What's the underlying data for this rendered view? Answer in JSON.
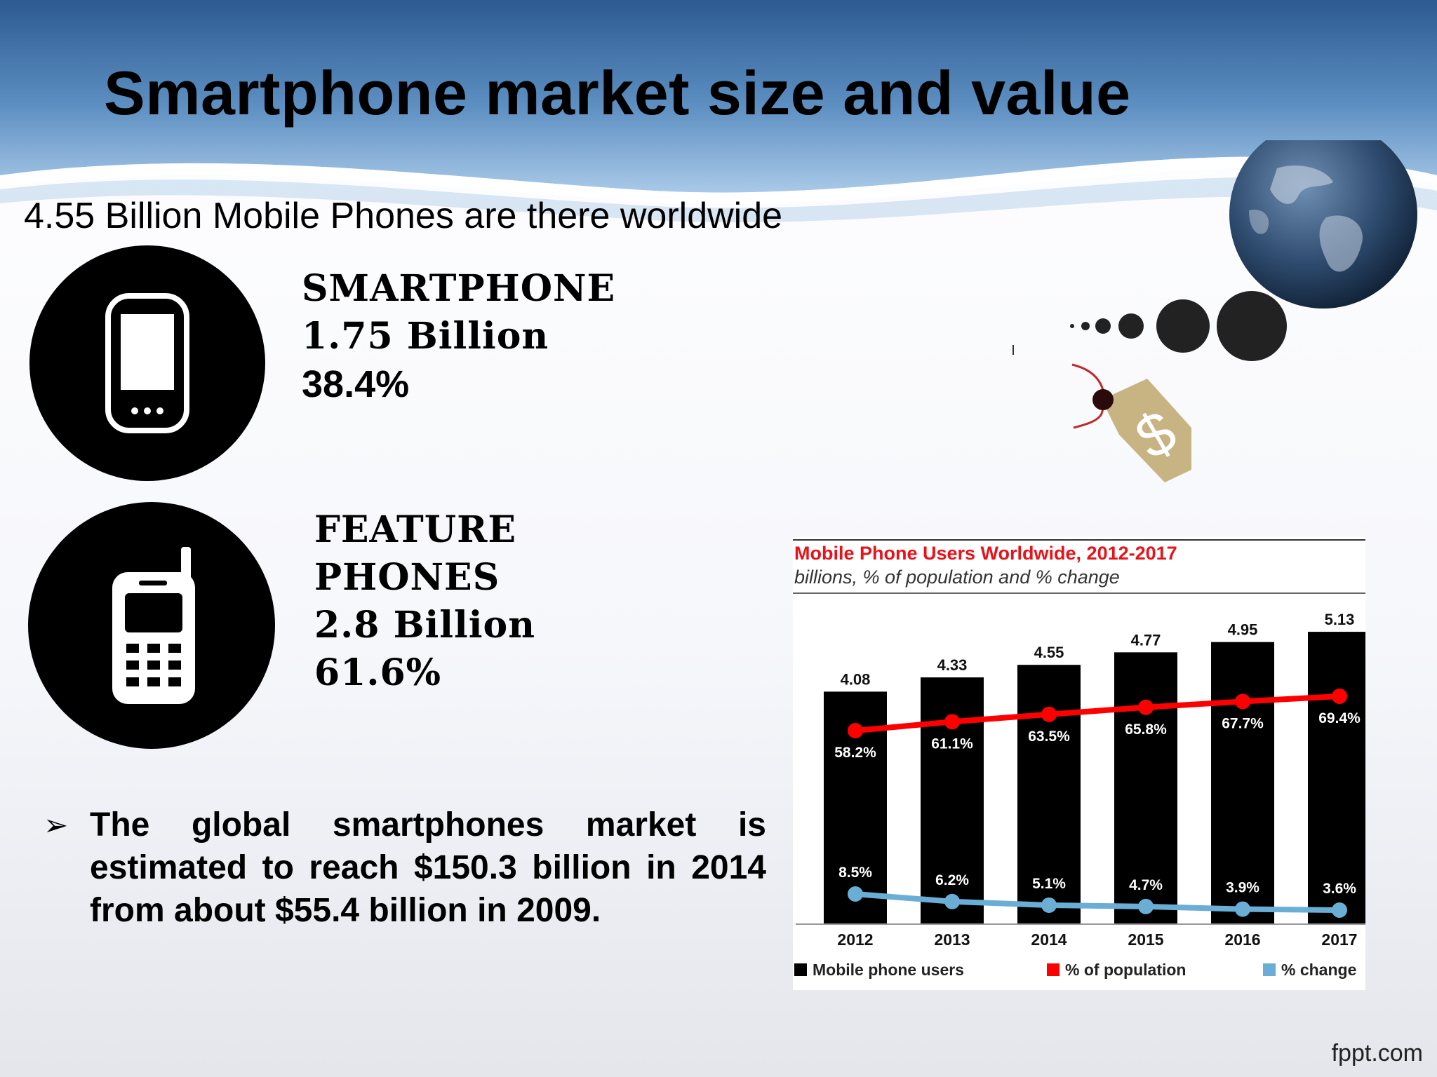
{
  "slide": {
    "title": "Smartphone market size and value",
    "subtitle": "4.55 Billion Mobile Phones are there worldwide",
    "footer": "fppt.com"
  },
  "smartphone": {
    "label": "SMARTPHONE",
    "count": "1.75 Billion",
    "share": "38.4%",
    "icon": "smartphone-icon"
  },
  "feature": {
    "label_line1": "FEATURE",
    "label_line2": "PHONES",
    "count": "2.8 Billion",
    "share": "61.6%",
    "icon": "feature-phone-icon"
  },
  "bullet": {
    "marker": "➢",
    "text": "The global smartphones market is estimated to reach $150.3 billion in 2014 from about $55.4 billion in 2009."
  },
  "decoration": {
    "icons": [
      "globe-icon",
      "dots-icon",
      "price-tag-icon"
    ]
  },
  "chart_data": {
    "type": "bar",
    "title": "Mobile Phone Users Worldwide, 2012-2017",
    "subtitle": "billions, % of population and % change",
    "categories": [
      "2012",
      "2013",
      "2014",
      "2015",
      "2016",
      "2017"
    ],
    "series": [
      {
        "name": "Mobile phone users",
        "type": "bar",
        "values": [
          4.08,
          4.33,
          4.55,
          4.77,
          4.95,
          5.13
        ],
        "labels": [
          "4.08",
          "4.33",
          "4.55",
          "4.77",
          "4.95",
          "5.13"
        ],
        "color": "#000000"
      },
      {
        "name": "% of population",
        "type": "line",
        "values": [
          58.2,
          61.1,
          63.5,
          65.8,
          67.7,
          69.4
        ],
        "labels": [
          "58.2%",
          "61.1%",
          "63.5%",
          "65.8%",
          "67.7%",
          "69.4%"
        ],
        "color": "#ff0000"
      },
      {
        "name": "% change",
        "type": "line",
        "values": [
          8.5,
          6.2,
          5.1,
          4.7,
          3.9,
          3.6
        ],
        "labels": [
          "8.5%",
          "6.2%",
          "5.1%",
          "4.7%",
          "3.9%",
          "3.6%"
        ],
        "color": "#6aaed6"
      }
    ],
    "legend": "bottom",
    "grid": false,
    "title_color": "#e8131a"
  }
}
